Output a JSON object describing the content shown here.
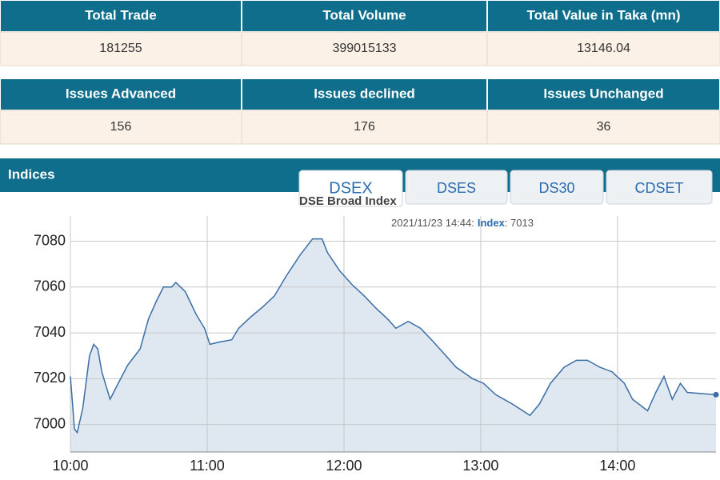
{
  "stats": {
    "headers": [
      "Total Trade",
      "Total Volume",
      "Total Value in Taka (mn)"
    ],
    "values": [
      181255,
      399015133,
      13146.04
    ]
  },
  "issues": {
    "headers": [
      "Issues Advanced",
      "Issues declined",
      "Issues Unchanged"
    ],
    "values": [
      156,
      176,
      36
    ]
  },
  "indices": {
    "title": "Indices",
    "tabs": [
      "DSEX",
      "DSES",
      "DS30",
      "CDSET"
    ],
    "active_tab": 0
  },
  "chart_data": {
    "type": "line",
    "subtitle": "DSE Broad Index",
    "tooltip": {
      "prefix": "2021/11/23 14:44:",
      "label": "Index",
      "text": ": 7013"
    },
    "color": "#3a6ea5",
    "fill": "#dfe7f1",
    "grid": true,
    "x": [
      10.0,
      10.03,
      10.05,
      10.09,
      10.14,
      10.17,
      10.2,
      10.23,
      10.29,
      10.35,
      10.42,
      10.51,
      10.57,
      10.63,
      10.68,
      10.74,
      10.77,
      10.84,
      10.92,
      10.98,
      11.02,
      11.09,
      11.18,
      11.23,
      11.32,
      11.4,
      11.49,
      11.58,
      11.68,
      11.77,
      11.84,
      11.88,
      11.97,
      12.06,
      12.15,
      12.23,
      12.32,
      12.38,
      12.47,
      12.56,
      12.64,
      12.73,
      12.82,
      12.94,
      13.02,
      13.11,
      13.23,
      13.36,
      13.43,
      13.51,
      13.61,
      13.7,
      13.78,
      13.87,
      13.96,
      14.05,
      14.11,
      14.22,
      14.28,
      14.34,
      14.4,
      14.46,
      14.51,
      14.72
    ],
    "values": [
      7021,
      6998,
      6996.5,
      7007,
      7030,
      7035,
      7033,
      7023,
      7011,
      7018,
      7026,
      7033,
      7046,
      7054,
      7060,
      7060,
      7062,
      7058,
      7048,
      7042,
      7035,
      7036,
      7037,
      7042,
      7047,
      7051,
      7056,
      7065,
      7074,
      7081,
      7081,
      7075,
      7067,
      7061,
      7056,
      7051,
      7046,
      7042,
      7045,
      7042,
      7037,
      7031,
      7025,
      7020,
      7018,
      7013,
      7009,
      7004,
      7009,
      7018,
      7025,
      7028,
      7028,
      7025,
      7023,
      7018,
      7011,
      7006,
      7014,
      7021,
      7011,
      7018,
      7014,
      7013
    ],
    "xlim": [
      10,
      14.72
    ],
    "ylim": [
      6988,
      7091
    ],
    "xticks": [
      {
        "value": 10,
        "label": "10:00"
      },
      {
        "value": 11,
        "label": "11:00"
      },
      {
        "value": 12,
        "label": "12:00"
      },
      {
        "value": 13,
        "label": "13:00"
      },
      {
        "value": 14,
        "label": "14:00"
      }
    ],
    "yticks": [
      7000,
      7020,
      7040,
      7060,
      7080
    ]
  }
}
